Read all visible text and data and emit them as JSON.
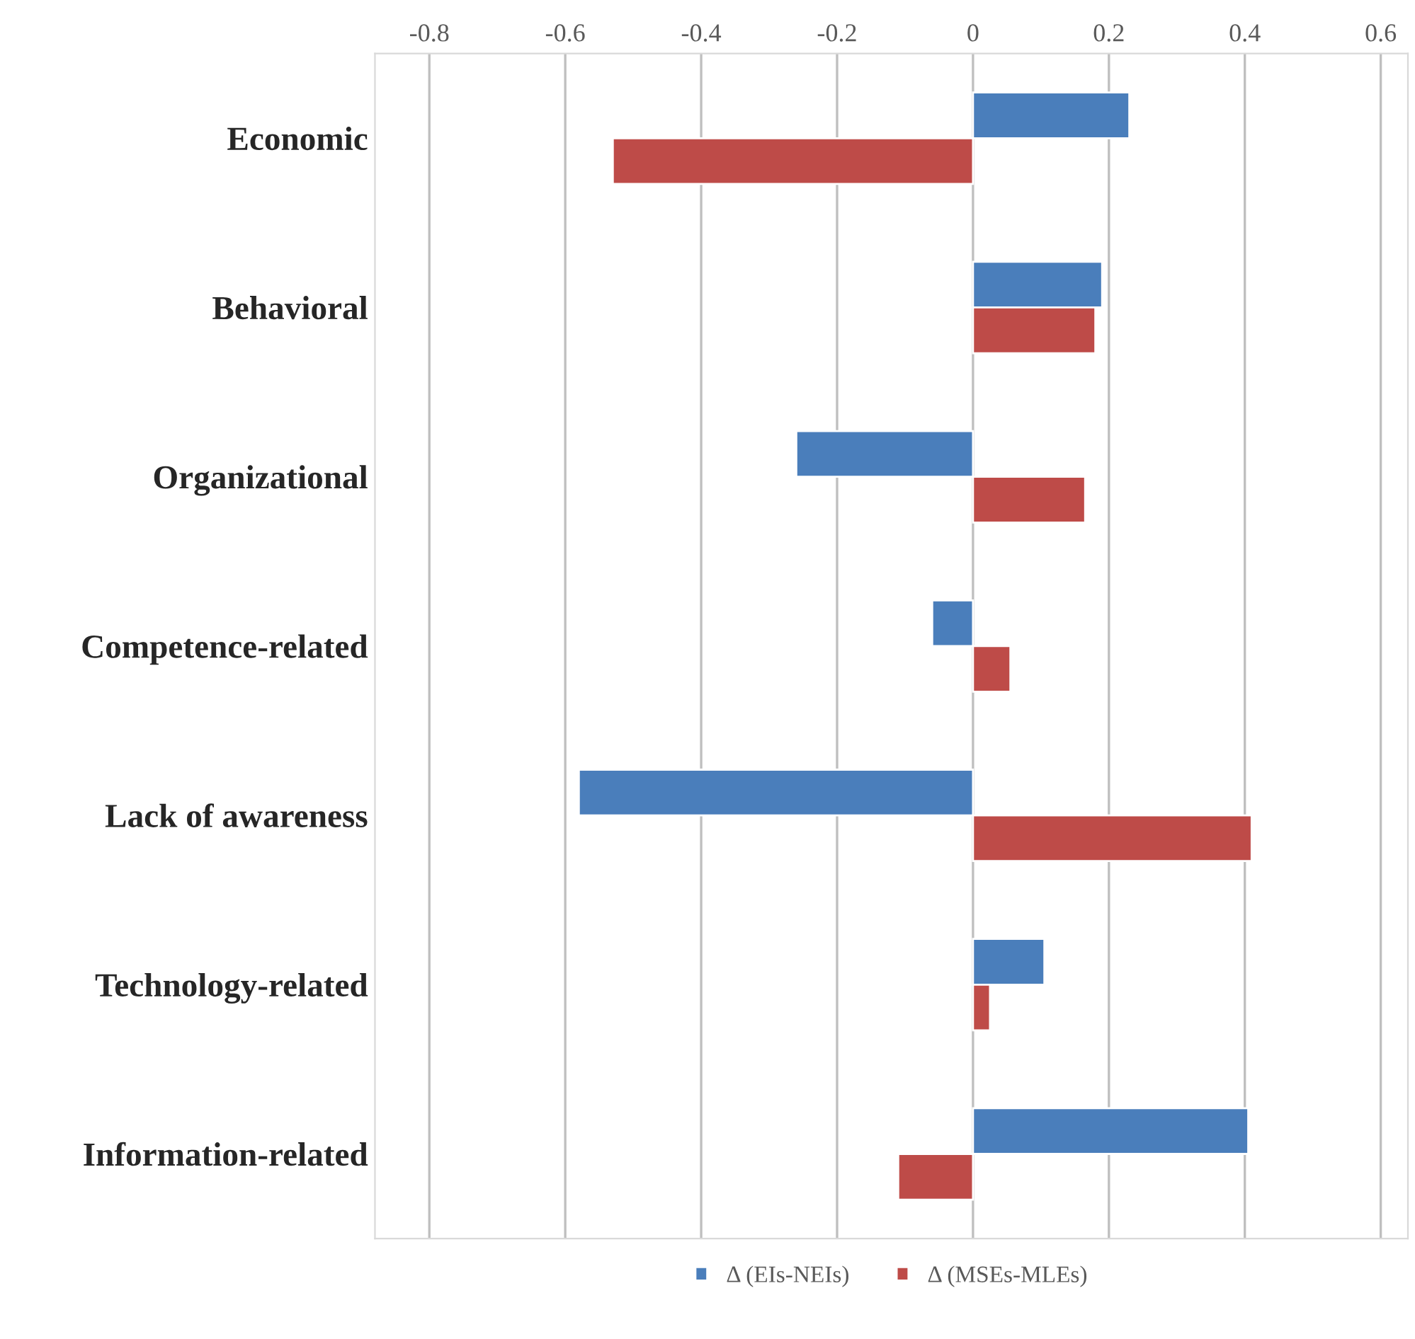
{
  "chart_data": {
    "type": "bar",
    "orientation": "horizontal",
    "categories": [
      "Economic",
      "Behavioral",
      "Organizational",
      "Competence-related",
      "Lack of awareness",
      "Technology-related",
      "Information-related"
    ],
    "series": [
      {
        "name": "Δ (EIs-NEIs)",
        "color": "#4a7ebb",
        "values": [
          0.23,
          0.19,
          -0.26,
          -0.06,
          -0.58,
          0.105,
          0.405
        ]
      },
      {
        "name": "Δ (MSEs-MLEs)",
        "color": "#be4b48",
        "values": [
          -0.53,
          0.18,
          0.165,
          0.055,
          0.41,
          0.025,
          -0.11
        ]
      }
    ],
    "xlim": [
      -0.88,
      0.64
    ],
    "xticks": [
      -0.8,
      -0.6,
      -0.4,
      -0.2,
      0,
      0.2,
      0.4,
      0.6
    ],
    "grid": "x",
    "legend": "bottom"
  }
}
